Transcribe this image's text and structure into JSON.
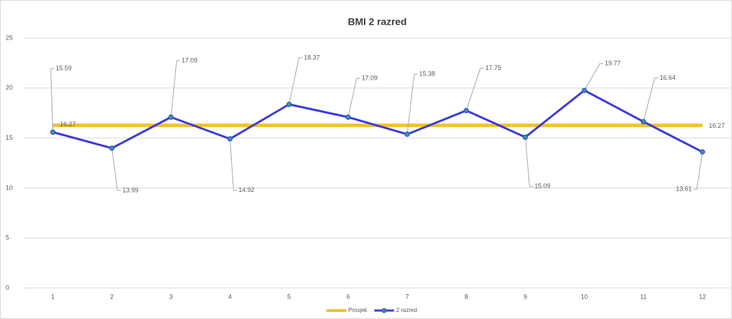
{
  "chart_data": {
    "type": "line",
    "title": "BMI 2 razred",
    "categories": [
      "1",
      "2",
      "3",
      "4",
      "5",
      "6",
      "7",
      "8",
      "9",
      "10",
      "11",
      "12"
    ],
    "series": [
      {
        "name": "Prosjek",
        "color": "#f2c12e",
        "values": [
          16.27,
          16.27,
          16.27,
          16.27,
          16.27,
          16.27,
          16.27,
          16.27,
          16.27,
          16.27,
          16.27,
          16.27
        ]
      },
      {
        "name": "2 razred",
        "color": "#3b3bdc",
        "marker_color": "#2f9e8c",
        "values": [
          15.59,
          13.99,
          17.09,
          14.92,
          18.37,
          17.09,
          15.38,
          17.75,
          15.09,
          19.77,
          16.64,
          13.61
        ]
      }
    ],
    "ylim": [
      0,
      25
    ],
    "yticks": [
      0,
      5,
      10,
      15,
      20,
      25
    ],
    "grid": true,
    "legend": "bottom"
  }
}
